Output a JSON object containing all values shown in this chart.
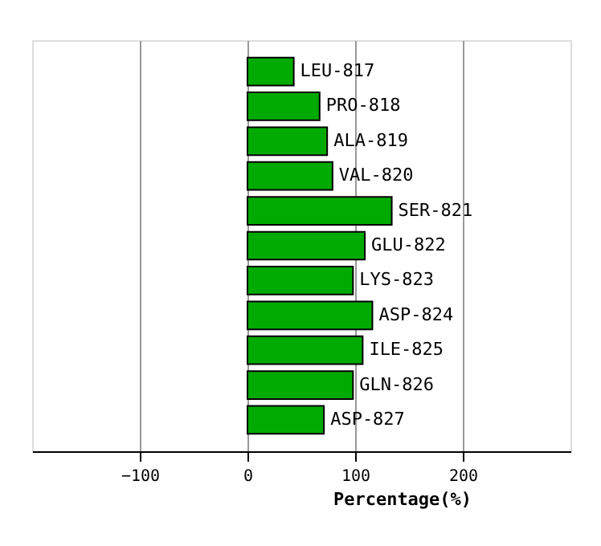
{
  "chart_data": {
    "type": "bar",
    "orientation": "horizontal",
    "xlabel": "Percentage(%)",
    "categories": [
      "LEU-817",
      "PRO-818",
      "ALA-819",
      "VAL-820",
      "SER-821",
      "GLU-822",
      "LYS-823",
      "ASP-824",
      "ILE-825",
      "GLN-826",
      "ASP-827"
    ],
    "values": [
      43,
      67,
      74,
      79,
      134,
      109,
      98,
      116,
      107,
      98,
      71
    ],
    "color": "#00aa00",
    "xlim": [
      -200,
      300
    ],
    "xticks": [
      -100,
      0,
      100,
      200
    ],
    "grid": "x"
  }
}
